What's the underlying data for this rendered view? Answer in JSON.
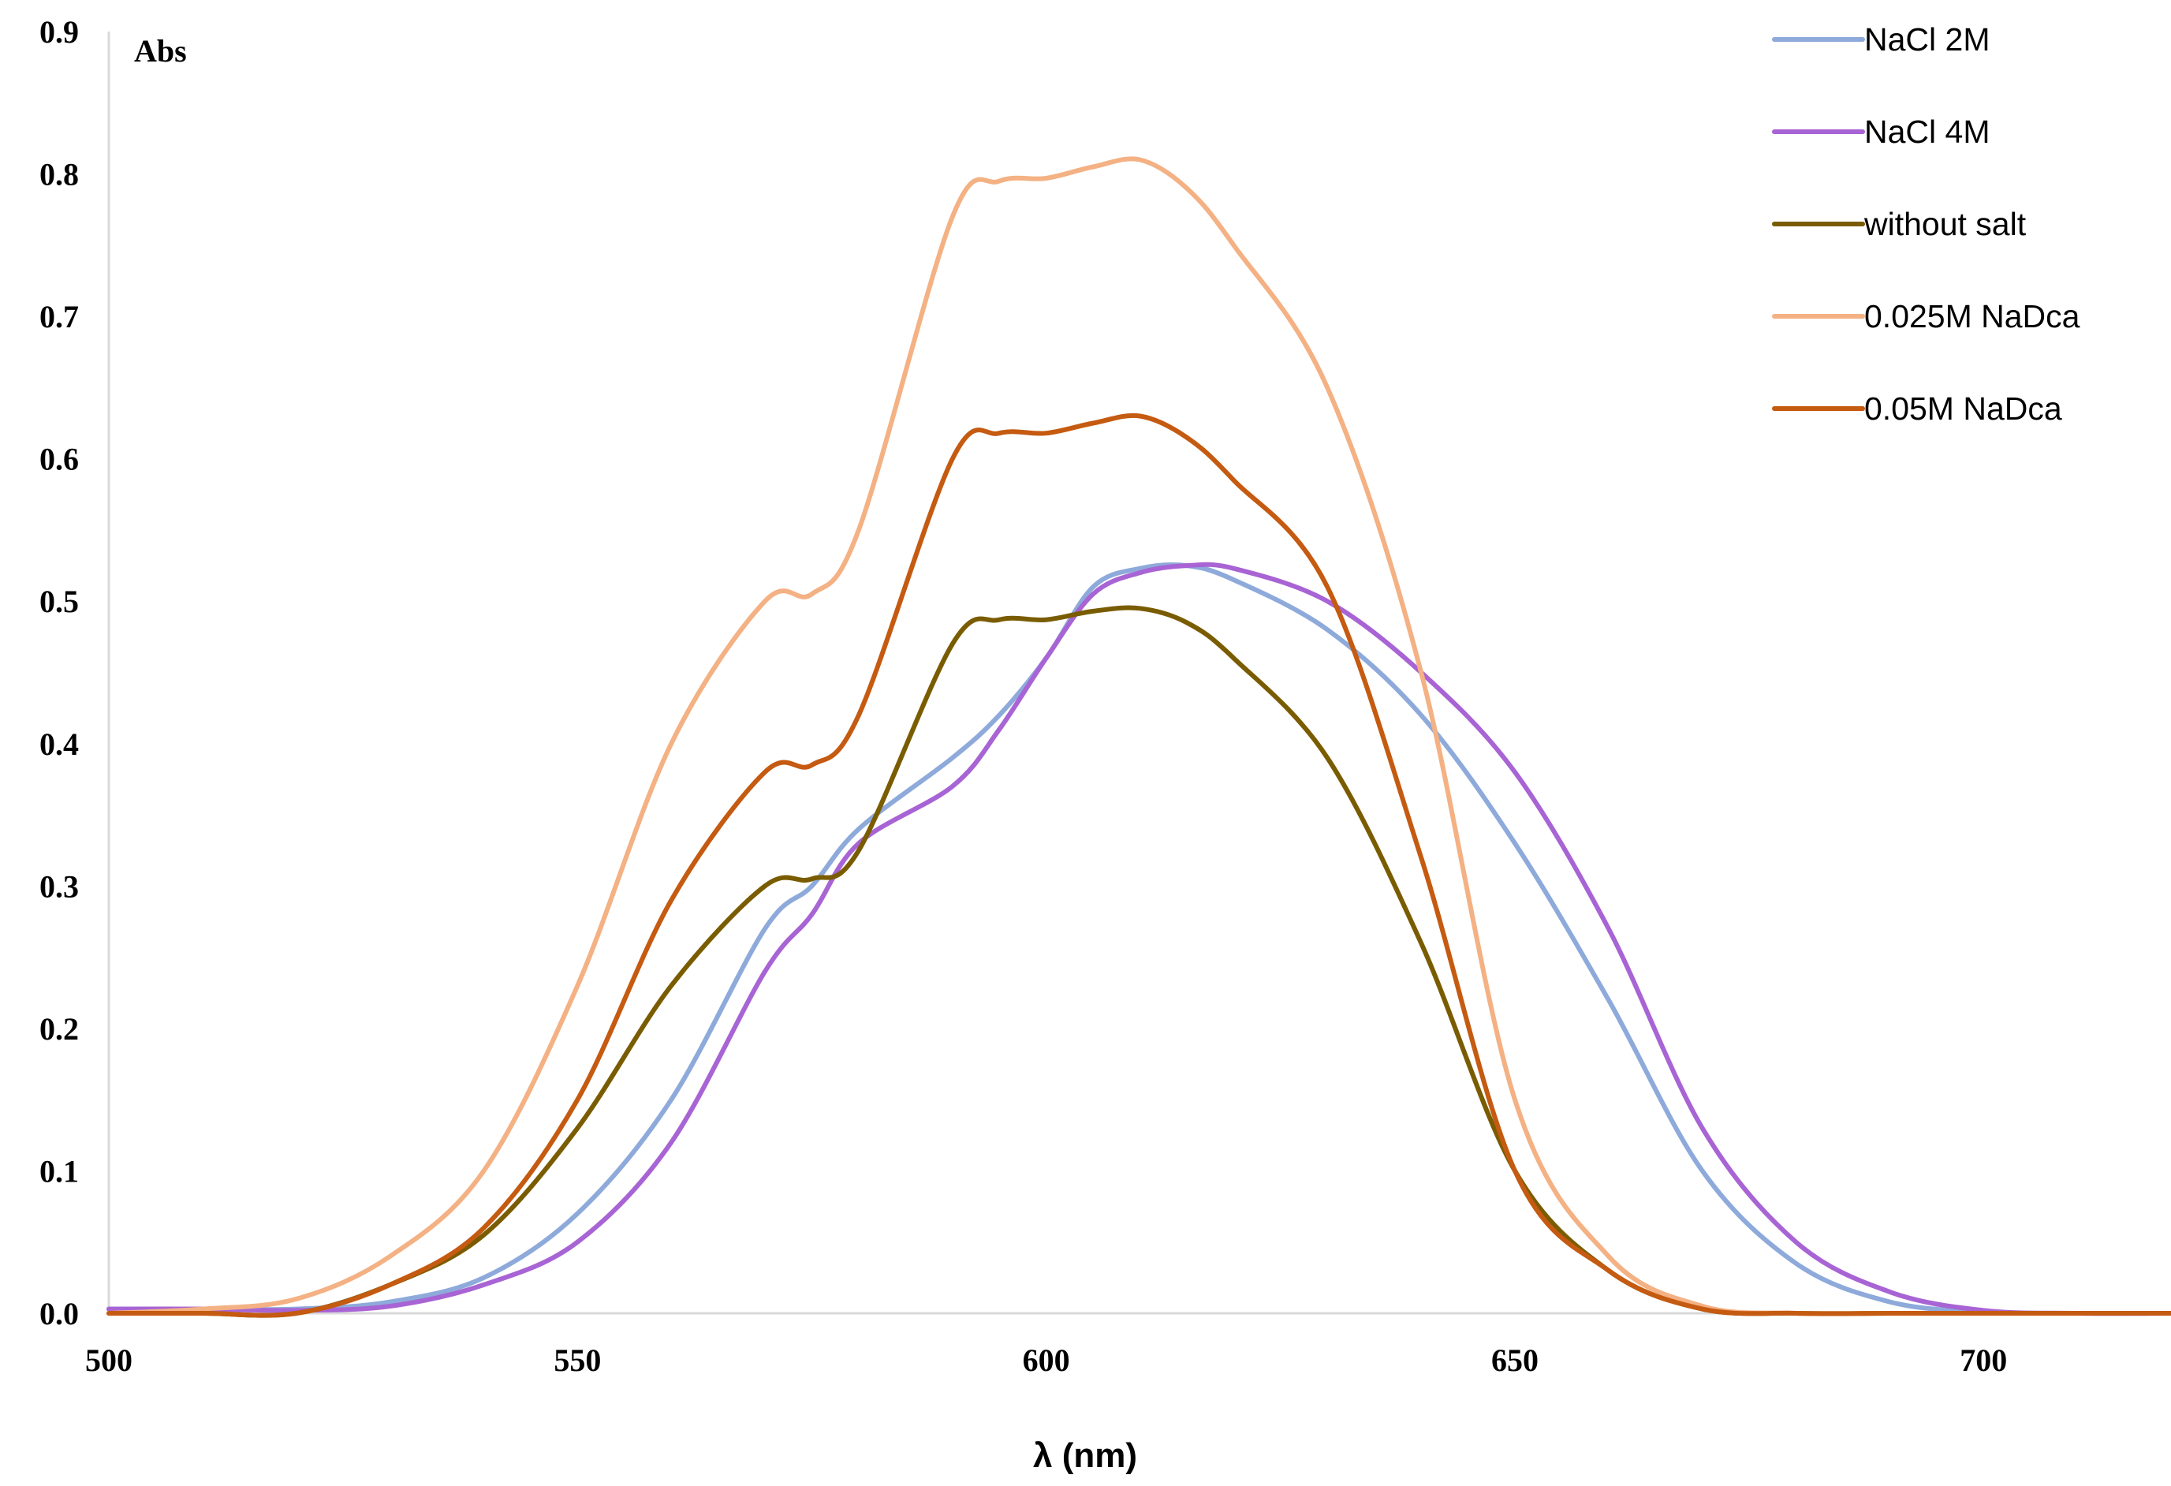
{
  "chart_data": {
    "type": "line",
    "title": "",
    "xlabel": "λ (nm)",
    "ylabel": "Abs",
    "xlim": [
      500,
      720
    ],
    "ylim": [
      0,
      0.9
    ],
    "x_ticks": [
      "500",
      "550",
      "600",
      "650",
      "700"
    ],
    "y_ticks": [
      "0.0",
      "0.1",
      "0.2",
      "0.3",
      "0.4",
      "0.5",
      "0.6",
      "0.7",
      "0.8",
      "0.9"
    ],
    "grid": false,
    "legend_position": "top-right",
    "x": [
      500,
      510,
      520,
      530,
      540,
      550,
      560,
      570,
      575,
      580,
      590,
      595,
      600,
      605,
      610,
      615,
      620,
      630,
      640,
      650,
      660,
      670,
      680,
      690,
      700,
      710,
      720
    ],
    "series": [
      {
        "name": "NaCl 2M",
        "color": "#8eaadb",
        "values": [
          0.003,
          0.003,
          0.003,
          0.008,
          0.025,
          0.07,
          0.15,
          0.27,
          0.3,
          0.34,
          0.39,
          0.42,
          0.46,
          0.51,
          0.523,
          0.525,
          0.515,
          0.48,
          0.42,
          0.33,
          0.22,
          0.1,
          0.035,
          0.008,
          0.001,
          0.0,
          0.0
        ]
      },
      {
        "name": "NaCl 4M",
        "color": "#a864d4",
        "values": [
          0.003,
          0.003,
          0.002,
          0.005,
          0.02,
          0.05,
          0.12,
          0.24,
          0.28,
          0.33,
          0.37,
          0.41,
          0.46,
          0.505,
          0.52,
          0.525,
          0.523,
          0.5,
          0.45,
          0.38,
          0.27,
          0.13,
          0.05,
          0.015,
          0.002,
          0.0,
          0.0
        ]
      },
      {
        "name": "without salt",
        "color": "#7a5c00",
        "values": [
          0.0,
          0.0,
          0.0,
          0.02,
          0.055,
          0.13,
          0.23,
          0.3,
          0.305,
          0.325,
          0.47,
          0.487,
          0.487,
          0.493,
          0.495,
          0.485,
          0.46,
          0.39,
          0.26,
          0.1,
          0.03,
          0.003,
          0.0,
          0.0,
          0.0,
          0.0,
          0.0
        ]
      },
      {
        "name": "0.025M NaDca",
        "color": "#f4b183",
        "values": [
          0.0,
          0.003,
          0.01,
          0.04,
          0.1,
          0.23,
          0.4,
          0.5,
          0.505,
          0.55,
          0.77,
          0.795,
          0.797,
          0.805,
          0.81,
          0.79,
          0.75,
          0.65,
          0.45,
          0.15,
          0.04,
          0.005,
          0.0,
          0.0,
          0.0,
          0.0,
          0.0
        ]
      },
      {
        "name": "0.05M NaDca",
        "color": "#c55a11",
        "values": [
          0.0,
          0.0,
          0.0,
          0.02,
          0.06,
          0.15,
          0.29,
          0.38,
          0.385,
          0.42,
          0.6,
          0.618,
          0.618,
          0.625,
          0.63,
          0.615,
          0.585,
          0.51,
          0.32,
          0.1,
          0.03,
          0.003,
          0.0,
          0.0,
          0.0,
          0.0,
          0.0
        ]
      }
    ]
  }
}
